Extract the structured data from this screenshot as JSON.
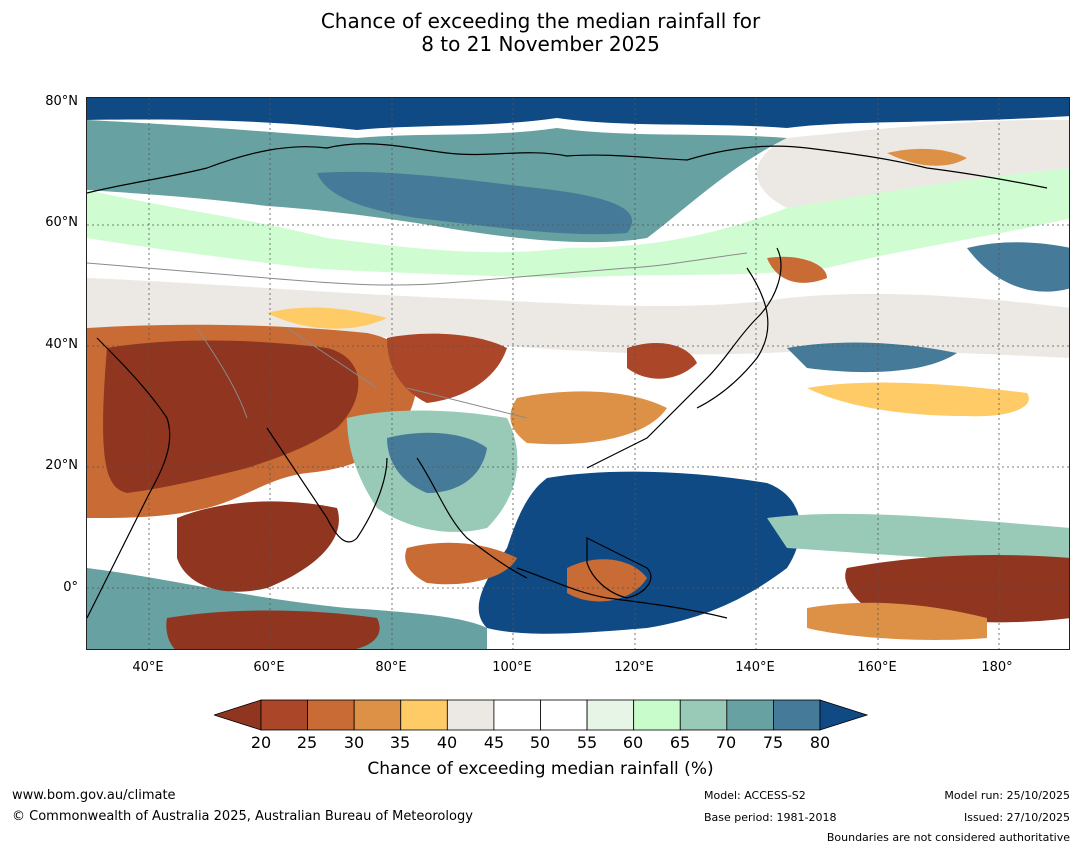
{
  "title": {
    "line1": "Chance of exceeding the median rainfall for",
    "line2": "8 to 21 November 2025"
  },
  "map": {
    "latitude_labels": [
      "80°N",
      "60°N",
      "40°N",
      "20°N",
      "0°"
    ],
    "longitude_labels": [
      "40°E",
      "60°E",
      "80°E",
      "100°E",
      "120°E",
      "140°E",
      "160°E",
      "180°"
    ]
  },
  "colorbar": {
    "ticks": [
      "20",
      "25",
      "30",
      "35",
      "40",
      "45",
      "50",
      "55",
      "60",
      "65",
      "70",
      "75",
      "80"
    ],
    "colors": [
      "#8f3520",
      "#ab4628",
      "#c96b35",
      "#dd9146",
      "#ffcb67",
      "#ece9e4",
      "#ffffff",
      "#ffffff",
      "#e6f5e6",
      "#c8fcca",
      "#98cab7",
      "#68a1a1",
      "#467a99",
      "#0f4a85"
    ],
    "label": "Chance of exceeding median rainfall (%)"
  },
  "footer": {
    "url": "www.bom.gov.au/climate",
    "copyright": "© Commonwealth of Australia 2025, Australian Bureau of Meteorology",
    "model": "Model: ACCESS-S2",
    "base_period": "Base period: 1981-2018",
    "model_run": "Model run: 25/10/2025",
    "issued": "Issued: 27/10/2025",
    "disclaimer": "Boundaries are not considered authoritative"
  },
  "colors": {
    "land_outline": "#000000",
    "country_border": "#8a8a8a"
  }
}
